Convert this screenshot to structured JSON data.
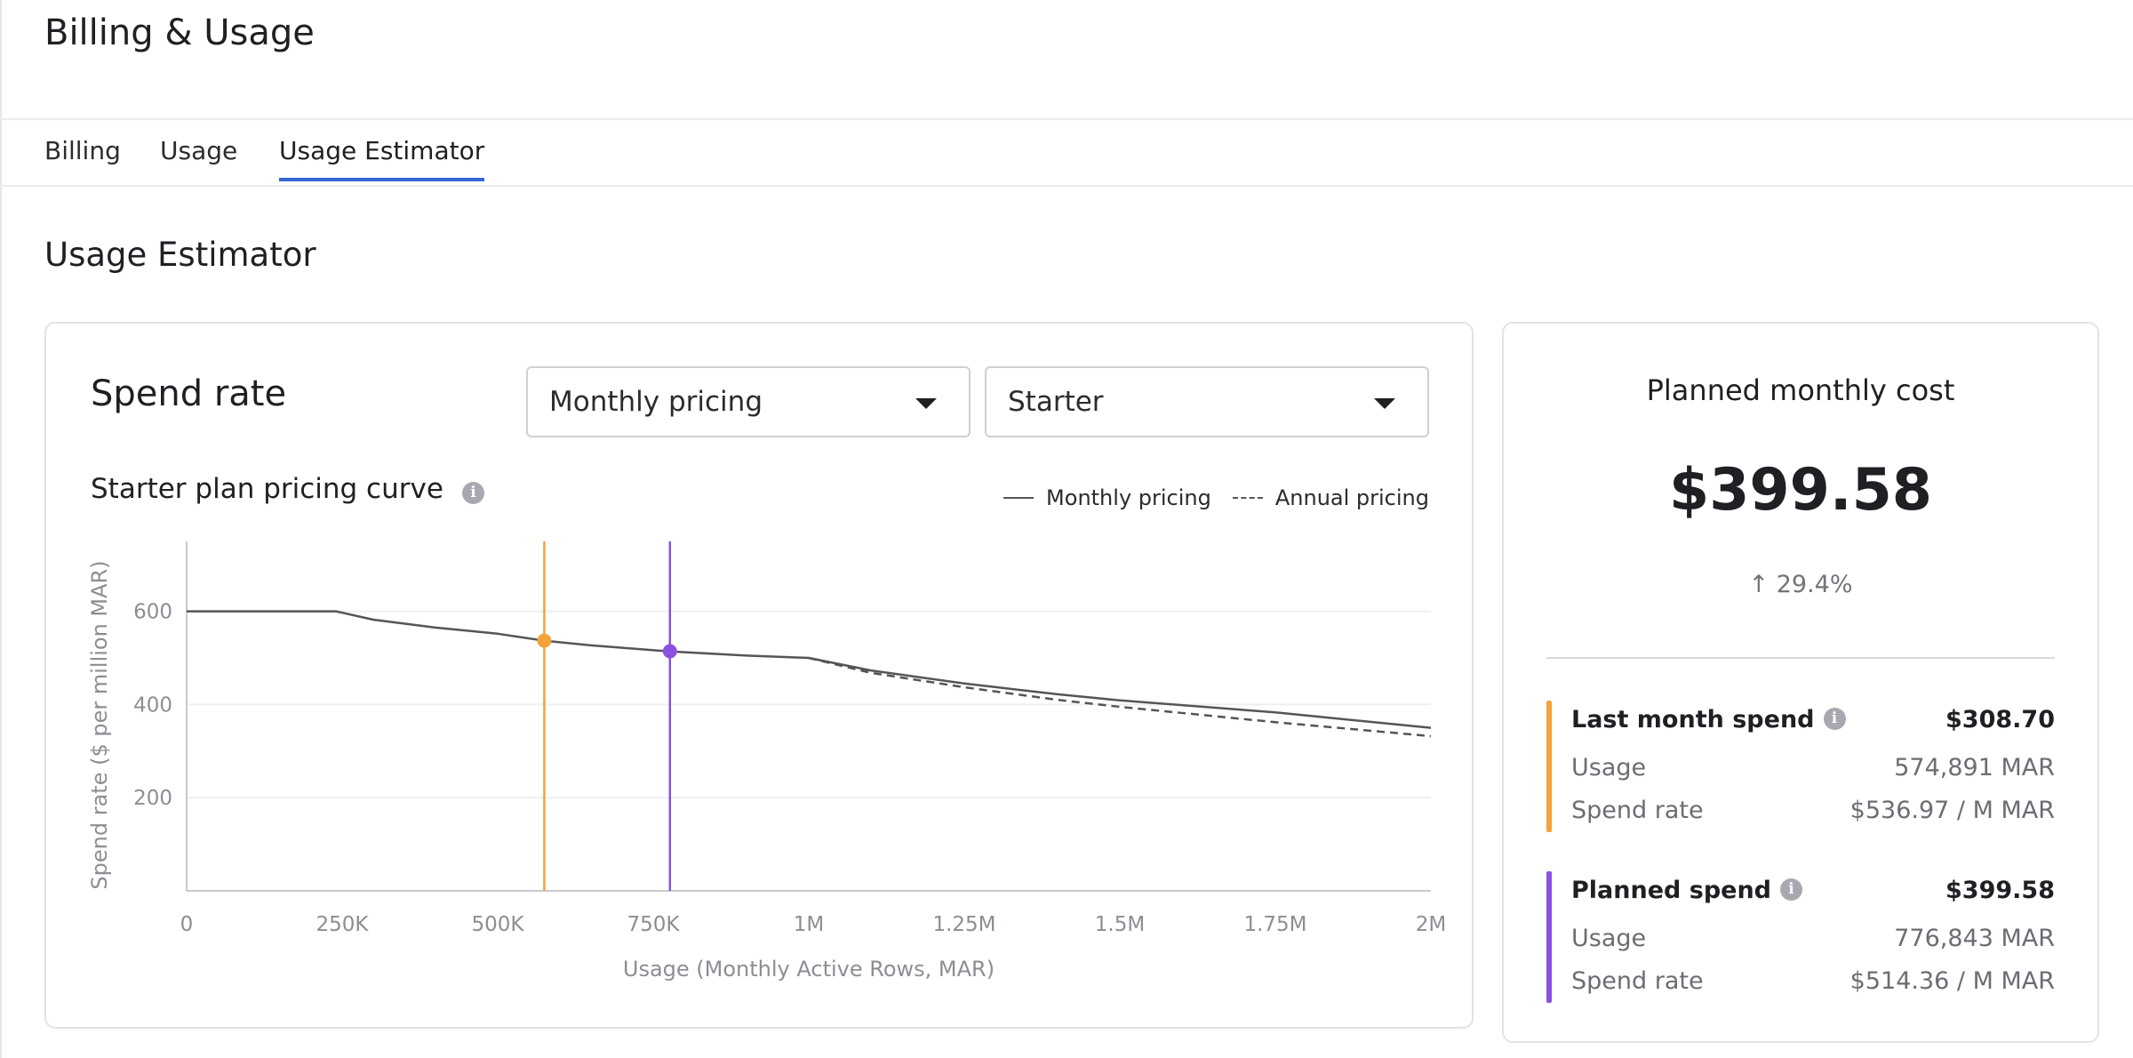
{
  "page": {
    "title": "Billing & Usage"
  },
  "tabs": [
    {
      "label": "Billing",
      "active": false
    },
    {
      "label": "Usage",
      "active": false
    },
    {
      "label": "Usage Estimator",
      "active": true
    }
  ],
  "section_title": "Usage Estimator",
  "spend_rate": {
    "title": "Spend rate",
    "pricing_select": "Monthly pricing",
    "plan_select": "Starter",
    "curve_title": "Starter plan pricing curve",
    "legend": {
      "monthly": "Monthly pricing",
      "annual": "Annual pricing"
    }
  },
  "colors": {
    "accent": "#3367d6",
    "last_month": "#f2a33a",
    "planned": "#8b52e0",
    "curve": "#555555"
  },
  "chart_data": {
    "type": "line",
    "xlabel": "Usage (Monthly Active Rows, MAR)",
    "ylabel": "Spend rate ($ per million MAR)",
    "x_ticks": [
      {
        "value": 0,
        "label": "0"
      },
      {
        "value": 250000,
        "label": "250K"
      },
      {
        "value": 500000,
        "label": "500K"
      },
      {
        "value": 750000,
        "label": "750K"
      },
      {
        "value": 1000000,
        "label": "1M"
      },
      {
        "value": 1250000,
        "label": "1.25M"
      },
      {
        "value": 1500000,
        "label": "1.5M"
      },
      {
        "value": 1750000,
        "label": "1.75M"
      },
      {
        "value": 2000000,
        "label": "2M"
      }
    ],
    "y_ticks": [
      {
        "value": 200,
        "label": "200"
      },
      {
        "value": 400,
        "label": "400"
      },
      {
        "value": 600,
        "label": "600"
      }
    ],
    "xlim": [
      0,
      2000000
    ],
    "ylim": [
      0,
      750
    ],
    "grid": "horizontal",
    "legend_position": "top-right",
    "series": [
      {
        "name": "Monthly pricing",
        "style": "solid",
        "points": [
          [
            0,
            600
          ],
          [
            240000,
            600
          ],
          [
            300000,
            582
          ],
          [
            400000,
            565
          ],
          [
            500000,
            552
          ],
          [
            574891,
            537
          ],
          [
            650000,
            527
          ],
          [
            776843,
            514
          ],
          [
            900000,
            505
          ],
          [
            1000000,
            500
          ],
          [
            1100000,
            473
          ],
          [
            1250000,
            445
          ],
          [
            1400000,
            422
          ],
          [
            1500000,
            409
          ],
          [
            1750000,
            383
          ],
          [
            2000000,
            350
          ]
        ]
      },
      {
        "name": "Annual pricing",
        "style": "dashed",
        "points": [
          [
            1000000,
            500
          ],
          [
            1100000,
            468
          ],
          [
            1250000,
            437
          ],
          [
            1400000,
            410
          ],
          [
            1500000,
            395
          ],
          [
            1750000,
            362
          ],
          [
            2000000,
            332
          ]
        ]
      }
    ],
    "markers": [
      {
        "x": 574891,
        "y": 536.97,
        "color": "#f2a33a"
      },
      {
        "x": 776843,
        "y": 514.36,
        "color": "#8b52e0"
      }
    ]
  },
  "cost": {
    "title": "Planned monthly cost",
    "value": "$399.58",
    "change": "29.4%",
    "last_month": {
      "title": "Last month spend",
      "amount": "$308.70",
      "usage_label": "Usage",
      "usage_value": "574,891 MAR",
      "rate_label": "Spend rate",
      "rate_value": "$536.97 / M MAR"
    },
    "planned": {
      "title": "Planned spend",
      "amount": "$399.58",
      "usage_label": "Usage",
      "usage_value": "776,843 MAR",
      "rate_label": "Spend rate",
      "rate_value": "$514.36 / M MAR"
    }
  }
}
